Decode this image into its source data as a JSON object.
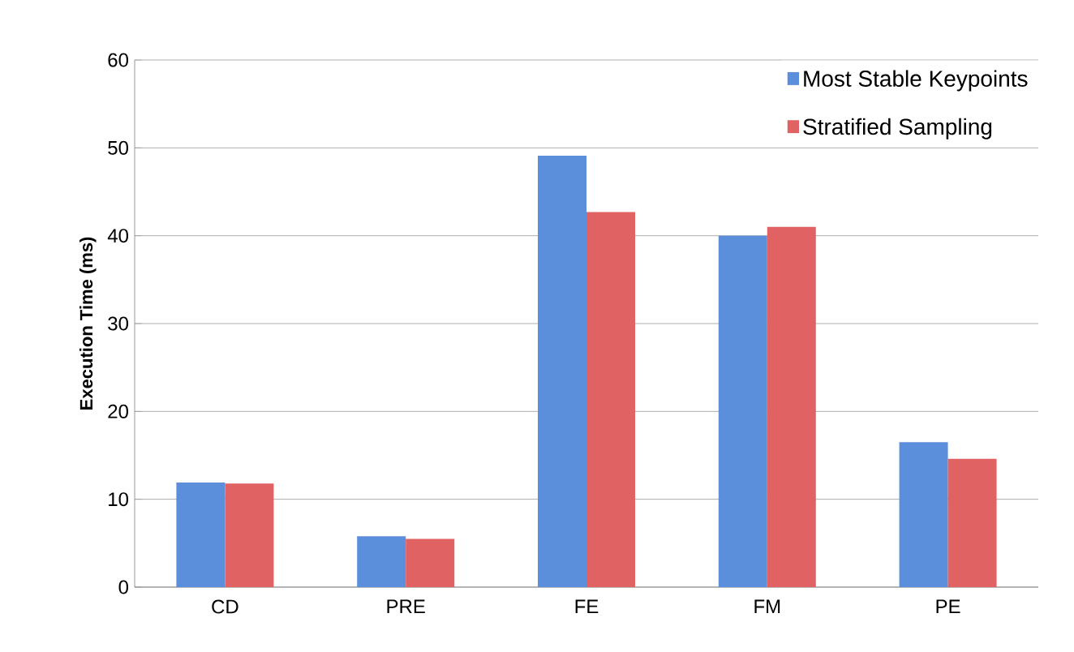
{
  "chart_data": {
    "type": "bar",
    "ylabel": "Execution Time (ms)",
    "categories": [
      "CD",
      "PRE",
      "FE",
      "FM",
      "PE"
    ],
    "series": [
      {
        "name": "Most Stable Keypoints",
        "color": "#5b8fdc",
        "values": [
          11.9,
          5.8,
          49.1,
          40.0,
          16.5
        ]
      },
      {
        "name": "Stratified Sampling",
        "color": "#e06262",
        "values": [
          11.8,
          5.5,
          42.7,
          41.0,
          14.6
        ]
      }
    ],
    "ylim": [
      0,
      60
    ],
    "yticks": [
      0,
      10,
      20,
      30,
      40,
      50,
      60
    ],
    "grid": "y",
    "legend": "top right"
  }
}
